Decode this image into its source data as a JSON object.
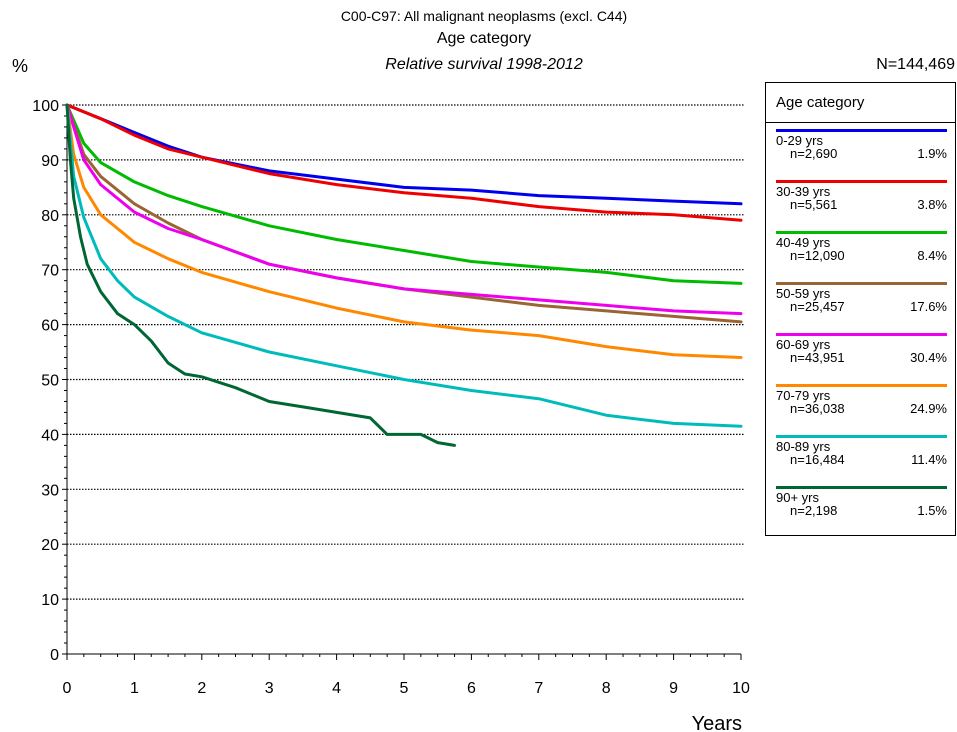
{
  "header": {
    "line1": "C00-C97: All malignant neoplasms (excl. C44)",
    "line2": "Age category",
    "line3": "Relative survival 1998-2012"
  },
  "total_n": "N=144,469",
  "legend_title": "Age category",
  "chart_data": {
    "type": "line",
    "ylabel": "%",
    "xlabel": "Years",
    "xlim": [
      0,
      10
    ],
    "ylim": [
      0,
      100
    ],
    "xticks": [
      "0",
      "1",
      "2",
      "3",
      "4",
      "5",
      "6",
      "7",
      "8",
      "9",
      "10"
    ],
    "yticks": [
      "0",
      "10",
      "20",
      "30",
      "40",
      "50",
      "60",
      "70",
      "80",
      "90",
      "100"
    ],
    "grid": "horizontal dotted",
    "legend_position": "right",
    "series": [
      {
        "name": "0-29 yrs",
        "n": "n=2,690",
        "pct": "1.9%",
        "color": "#0000ee",
        "x": [
          0,
          0.5,
          1,
          1.5,
          2,
          3,
          4,
          5,
          6,
          7,
          8,
          9,
          10
        ],
        "y": [
          100,
          97.5,
          95,
          92.5,
          90.5,
          88,
          86.5,
          85,
          84.5,
          83.5,
          83,
          82.5,
          82
        ]
      },
      {
        "name": "30-39 yrs",
        "n": "n=5,561",
        "pct": "3.8%",
        "color": "#ee0000",
        "x": [
          0,
          0.5,
          1,
          1.5,
          2,
          3,
          4,
          5,
          6,
          7,
          8,
          9,
          10
        ],
        "y": [
          100,
          97.5,
          94.5,
          92,
          90.5,
          87.5,
          85.5,
          84,
          83,
          81.5,
          80.5,
          80,
          79
        ]
      },
      {
        "name": "40-49 yrs",
        "n": "n=12,090",
        "pct": "8.4%",
        "color": "#00bb00",
        "x": [
          0,
          0.25,
          0.5,
          1,
          1.5,
          2,
          3,
          4,
          5,
          6,
          7,
          8,
          9,
          10
        ],
        "y": [
          100,
          93,
          89.5,
          86,
          83.5,
          81.5,
          78,
          75.5,
          73.5,
          71.5,
          70.5,
          69.5,
          68,
          67.5
        ]
      },
      {
        "name": "50-59 yrs",
        "n": "n=25,457",
        "pct": "17.6%",
        "color": "#996633",
        "x": [
          0,
          0.25,
          0.5,
          1,
          1.5,
          2,
          3,
          4,
          5,
          6,
          7,
          8,
          9,
          10
        ],
        "y": [
          100,
          91,
          87,
          82,
          78.5,
          75.5,
          71,
          68.5,
          66.5,
          65,
          63.5,
          62.5,
          61.5,
          60.5
        ]
      },
      {
        "name": "60-69 yrs",
        "n": "n=43,951",
        "pct": "30.4%",
        "color": "#ee00ee",
        "x": [
          0,
          0.25,
          0.5,
          1,
          1.5,
          2,
          3,
          4,
          5,
          6,
          7,
          8,
          9,
          10
        ],
        "y": [
          100,
          90,
          85.5,
          80.5,
          77.5,
          75.5,
          71,
          68.5,
          66.5,
          65.5,
          64.5,
          63.5,
          62.5,
          62
        ]
      },
      {
        "name": "70-79 yrs",
        "n": "n=36,038",
        "pct": "24.9%",
        "color": "#ff8800",
        "x": [
          0,
          0.1,
          0.25,
          0.5,
          1,
          1.5,
          2,
          3,
          4,
          5,
          6,
          7,
          8,
          9,
          10
        ],
        "y": [
          100,
          91,
          85,
          80,
          75,
          72,
          69.5,
          66,
          63,
          60.5,
          59,
          58,
          56,
          54.5,
          54
        ]
      },
      {
        "name": "80-89 yrs",
        "n": "n=16,484",
        "pct": "11.4%",
        "color": "#00bbbb",
        "x": [
          0,
          0.1,
          0.25,
          0.5,
          0.75,
          1,
          1.5,
          2,
          3,
          4,
          5,
          6,
          7,
          8,
          9,
          10
        ],
        "y": [
          100,
          87,
          79.5,
          72,
          68,
          65,
          61.5,
          58.5,
          55,
          52.5,
          50,
          48,
          46.5,
          43.5,
          42,
          41.5
        ]
      },
      {
        "name": "90+ yrs",
        "n": "n=2,198",
        "pct": "1.5%",
        "color": "#006633",
        "x": [
          0,
          0.05,
          0.1,
          0.2,
          0.3,
          0.5,
          0.75,
          1,
          1.25,
          1.5,
          1.75,
          2,
          2.5,
          3,
          3.5,
          4,
          4.5,
          4.75,
          5,
          5.25,
          5.5,
          5.75
        ],
        "y": [
          100,
          90,
          83,
          76,
          71,
          66,
          62,
          60,
          57,
          53,
          51,
          50.5,
          48.5,
          46,
          45,
          44,
          43,
          40,
          40,
          40,
          38.5,
          38
        ]
      }
    ]
  }
}
